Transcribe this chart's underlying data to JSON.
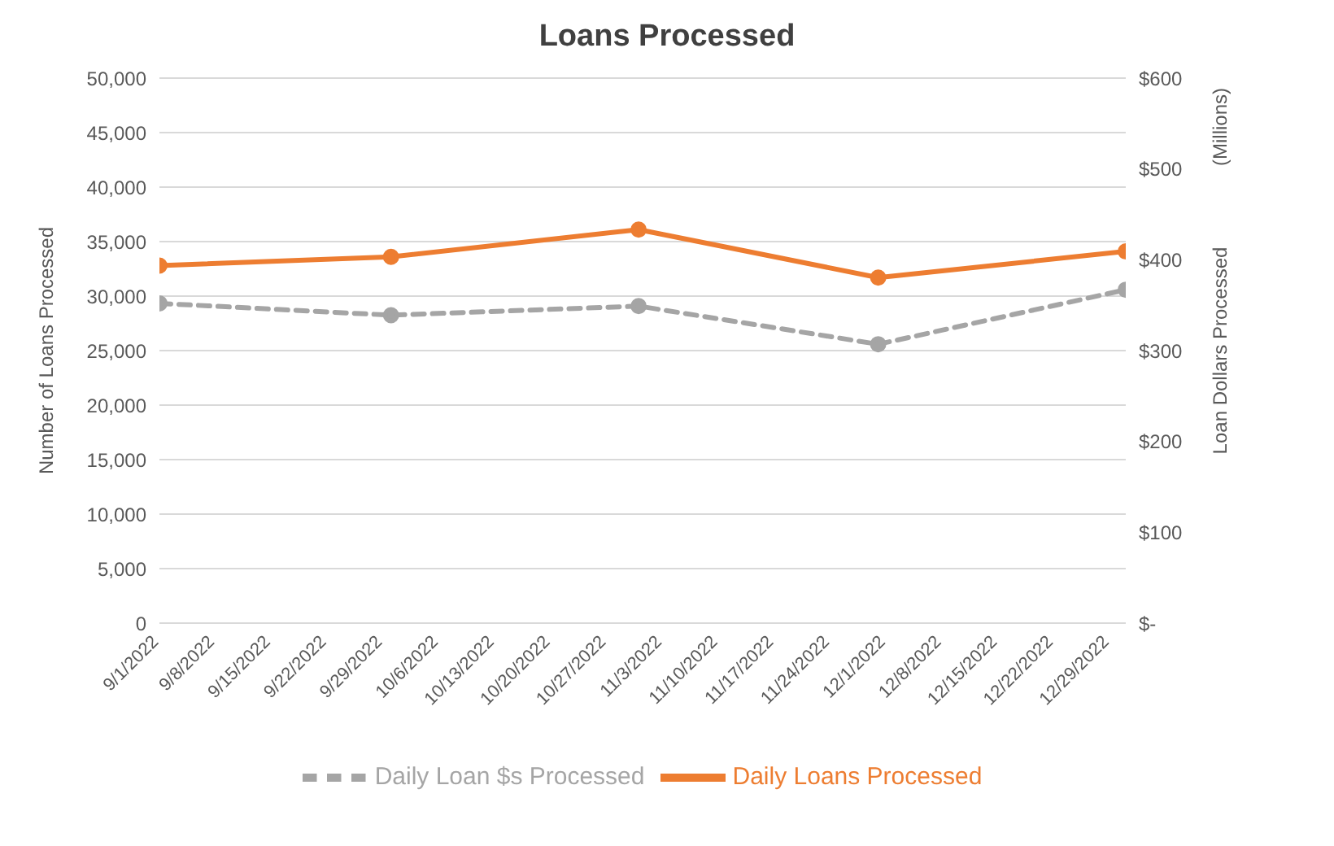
{
  "chart_data": {
    "type": "line",
    "title": "Loans Processed",
    "ylabel": "Number of Loans Processed",
    "y2label": "Loan Dollars Processed",
    "annotations": [
      "(Millions)"
    ],
    "x": [
      "2022-09-01",
      "2022-09-30",
      "2022-10-31",
      "2022-11-30",
      "2022-12-31"
    ],
    "series": [
      {
        "name": "Daily Loans Processed",
        "color": "#ed7d31",
        "values": [
          32800,
          33600,
          36100,
          31700,
          34100
        ],
        "line_style": "solid"
      },
      {
        "name": "Daily Loan $s Processed",
        "color": "#a5a5a5",
        "values": [
          352,
          339,
          349,
          307,
          367
        ],
        "axis": "y2",
        "line_style": "dashed"
      }
    ],
    "xlim": [
      "2022-09-01",
      "2022-12-31"
    ],
    "xticks": [
      {
        "value": "2022-09-01",
        "label": "9/1/2022"
      },
      {
        "value": "2022-09-08",
        "label": "9/8/2022"
      },
      {
        "value": "2022-09-15",
        "label": "9/15/2022"
      },
      {
        "value": "2022-09-22",
        "label": "9/22/2022"
      },
      {
        "value": "2022-09-29",
        "label": "9/29/2022"
      },
      {
        "value": "2022-10-06",
        "label": "10/6/2022"
      },
      {
        "value": "2022-10-13",
        "label": "10/13/2022"
      },
      {
        "value": "2022-10-20",
        "label": "10/20/2022"
      },
      {
        "value": "2022-10-27",
        "label": "10/27/2022"
      },
      {
        "value": "2022-11-03",
        "label": "11/3/2022"
      },
      {
        "value": "2022-11-10",
        "label": "11/10/2022"
      },
      {
        "value": "2022-11-17",
        "label": "11/17/2022"
      },
      {
        "value": "2022-11-24",
        "label": "11/24/2022"
      },
      {
        "value": "2022-12-01",
        "label": "12/1/2022"
      },
      {
        "value": "2022-12-08",
        "label": "12/8/2022"
      },
      {
        "value": "2022-12-15",
        "label": "12/15/2022"
      },
      {
        "value": "2022-12-22",
        "label": "12/22/2022"
      },
      {
        "value": "2022-12-29",
        "label": "12/29/2022"
      }
    ],
    "ylim": [
      0,
      50000
    ],
    "yticks": [
      {
        "value": 0,
        "label": "0"
      },
      {
        "value": 5000,
        "label": "5,000"
      },
      {
        "value": 10000,
        "label": "10,000"
      },
      {
        "value": 15000,
        "label": "15,000"
      },
      {
        "value": 20000,
        "label": "20,000"
      },
      {
        "value": 25000,
        "label": "25,000"
      },
      {
        "value": 30000,
        "label": "30,000"
      },
      {
        "value": 35000,
        "label": "35,000"
      },
      {
        "value": 40000,
        "label": "40,000"
      },
      {
        "value": 45000,
        "label": "45,000"
      },
      {
        "value": 50000,
        "label": "50,000"
      }
    ],
    "y2lim": [
      0,
      600
    ],
    "y2ticks": [
      {
        "value": 0,
        "label": "$-"
      },
      {
        "value": 100,
        "label": "$100"
      },
      {
        "value": 200,
        "label": "$200"
      },
      {
        "value": 300,
        "label": "$300"
      },
      {
        "value": 400,
        "label": "$400"
      },
      {
        "value": 500,
        "label": "$500"
      },
      {
        "value": 600,
        "label": "$600"
      }
    ],
    "grid": "y",
    "legend": "bottom",
    "marker": "circle"
  }
}
